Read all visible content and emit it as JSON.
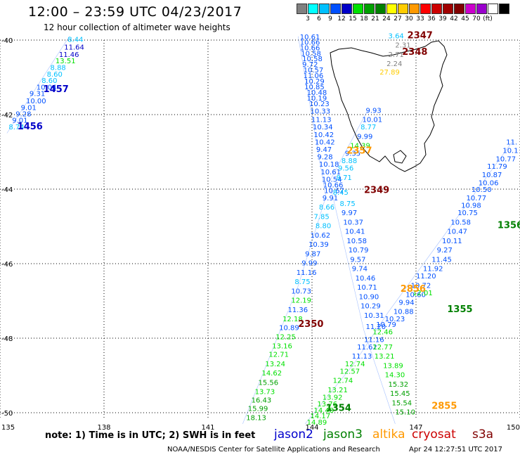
{
  "header": {
    "title": "12:00 – 23:59 UTC 04/23/2017",
    "subtitle": "12 hour collection of altimeter wave heights"
  },
  "color_scale": {
    "colors": [
      "#808080",
      "#00ffff",
      "#00c0ff",
      "#0050ff",
      "#0000c8",
      "#00e000",
      "#00a000",
      "#008000",
      "#ffff00",
      "#ffcc00",
      "#ff9900",
      "#ff0000",
      "#cc0000",
      "#a00000",
      "#800000",
      "#cc00cc",
      "#9900cc",
      "#ffffff",
      "#000000"
    ],
    "ticks": [
      "3",
      "6",
      "9",
      "12",
      "15",
      "18",
      "21",
      "24",
      "27",
      "30",
      "33",
      "36",
      "39",
      "42",
      "45",
      "70",
      "(ft)"
    ]
  },
  "axes": {
    "lon_ticks": [
      "135",
      "138",
      "141",
      "144",
      "147",
      "150"
    ],
    "lat_ticks": [
      "-40",
      "-42",
      "-44",
      "-46",
      "-48",
      "-50"
    ]
  },
  "coastline_color": "#000000",
  "pass_labels": [
    {
      "text": "1457",
      "lon": 136.25,
      "lat": -41.4,
      "color": "#0000c8"
    },
    {
      "text": "1456",
      "lon": 135.5,
      "lat": -42.4,
      "color": "#0000c8"
    },
    {
      "text": "2347",
      "lon": 146.75,
      "lat": -39.95,
      "color": "#800000"
    },
    {
      "text": "2348",
      "lon": 146.6,
      "lat": -40.4,
      "color": "#800000"
    },
    {
      "text": "2349",
      "lon": 145.5,
      "lat": -44.1,
      "color": "#800000"
    },
    {
      "text": "2350",
      "lon": 143.6,
      "lat": -47.7,
      "color": "#800000"
    },
    {
      "text": "1355",
      "lon": 147.9,
      "lat": -47.3,
      "color": "#008000"
    },
    {
      "text": "1356",
      "lon": 149.35,
      "lat": -45.05,
      "color": "#008000"
    },
    {
      "text": "1354",
      "lon": 144.4,
      "lat": -49.95,
      "color": "#008000"
    },
    {
      "text": "2357",
      "lon": 145.0,
      "lat": -43.05,
      "color": "#ff9900"
    },
    {
      "text": "2856",
      "lon": 146.55,
      "lat": -46.75,
      "color": "#ff9900"
    },
    {
      "text": "2855",
      "lon": 147.45,
      "lat": -49.9,
      "color": "#ff9900"
    }
  ],
  "wave_heights": [
    {
      "v": "8.44",
      "lon": 136.95,
      "lat": -40.05,
      "c": "#00c0ff"
    },
    {
      "v": "11.64",
      "lon": 136.85,
      "lat": -40.25,
      "c": "#0000c8"
    },
    {
      "v": "11.46",
      "lon": 136.7,
      "lat": -40.45,
      "c": "#0000c8"
    },
    {
      "v": "13.51",
      "lon": 136.6,
      "lat": -40.62,
      "c": "#00e000"
    },
    {
      "v": "8.88",
      "lon": 136.45,
      "lat": -40.8,
      "c": "#00c0ff"
    },
    {
      "v": "8.60",
      "lon": 136.35,
      "lat": -40.98,
      "c": "#00c0ff"
    },
    {
      "v": "8.60",
      "lon": 136.2,
      "lat": -41.15,
      "c": "#00c0ff"
    },
    {
      "v": "10.04",
      "lon": 136.05,
      "lat": -41.33,
      "c": "#0050ff"
    },
    {
      "v": "9.31",
      "lon": 135.85,
      "lat": -41.5,
      "c": "#0050ff"
    },
    {
      "v": "10.00",
      "lon": 135.75,
      "lat": -41.7,
      "c": "#0050ff"
    },
    {
      "v": "9.01",
      "lon": 135.6,
      "lat": -41.88,
      "c": "#0050ff"
    },
    {
      "v": "9.28",
      "lon": 135.45,
      "lat": -42.05,
      "c": "#0050ff"
    },
    {
      "v": "9.01",
      "lon": 135.35,
      "lat": -42.22,
      "c": "#0050ff"
    },
    {
      "v": "8.74",
      "lon": 135.25,
      "lat": -42.4,
      "c": "#00c0ff"
    },
    {
      "v": "10.61",
      "lon": 143.65,
      "lat": -39.98,
      "c": "#0050ff"
    },
    {
      "v": "10.66",
      "lon": 143.65,
      "lat": -40.12,
      "c": "#0050ff"
    },
    {
      "v": "10.66",
      "lon": 143.65,
      "lat": -40.27,
      "c": "#0050ff"
    },
    {
      "v": "10.58",
      "lon": 143.68,
      "lat": -40.42,
      "c": "#0050ff"
    },
    {
      "v": "10.58",
      "lon": 143.72,
      "lat": -40.57,
      "c": "#0050ff"
    },
    {
      "v": "9.72",
      "lon": 143.72,
      "lat": -40.72,
      "c": "#0050ff"
    },
    {
      "v": "10.57",
      "lon": 143.75,
      "lat": -40.87,
      "c": "#0050ff"
    },
    {
      "v": "11.06",
      "lon": 143.75,
      "lat": -41.02,
      "c": "#0050ff"
    },
    {
      "v": "10.29",
      "lon": 143.78,
      "lat": -41.17,
      "c": "#0050ff"
    },
    {
      "v": "10.85",
      "lon": 143.78,
      "lat": -41.32,
      "c": "#0050ff"
    },
    {
      "v": "10.48",
      "lon": 143.85,
      "lat": -41.47,
      "c": "#0050ff"
    },
    {
      "v": "10.19",
      "lon": 143.85,
      "lat": -41.62,
      "c": "#0050ff"
    },
    {
      "v": "10.23",
      "lon": 143.92,
      "lat": -41.77,
      "c": "#0050ff"
    },
    {
      "v": "10.33",
      "lon": 143.95,
      "lat": -41.97,
      "c": "#0050ff"
    },
    {
      "v": "11.13",
      "lon": 143.98,
      "lat": -42.2,
      "c": "#0050ff"
    },
    {
      "v": "10.34",
      "lon": 144.02,
      "lat": -42.4,
      "c": "#0050ff"
    },
    {
      "v": "10.42",
      "lon": 144.05,
      "lat": -42.6,
      "c": "#0050ff"
    },
    {
      "v": "10.42",
      "lon": 144.08,
      "lat": -42.8,
      "c": "#0050ff"
    },
    {
      "v": "9.47",
      "lon": 144.12,
      "lat": -43.0,
      "c": "#0050ff"
    },
    {
      "v": "9.28",
      "lon": 144.15,
      "lat": -43.2,
      "c": "#0050ff"
    },
    {
      "v": "10.18",
      "lon": 144.2,
      "lat": -43.4,
      "c": "#0050ff"
    },
    {
      "v": "10.61",
      "lon": 144.25,
      "lat": -43.6,
      "c": "#0050ff"
    },
    {
      "v": "10.54",
      "lon": 144.28,
      "lat": -43.8,
      "c": "#0050ff"
    },
    {
      "v": "10.66",
      "lon": 144.32,
      "lat": -43.95,
      "c": "#0050ff"
    },
    {
      "v": "10.67",
      "lon": 144.35,
      "lat": -44.1,
      "c": "#0050ff"
    },
    {
      "v": "9.91",
      "lon": 144.3,
      "lat": -44.3,
      "c": "#0050ff"
    },
    {
      "v": "8.66",
      "lon": 144.2,
      "lat": -44.55,
      "c": "#00c0ff"
    },
    {
      "v": "7.85",
      "lon": 144.05,
      "lat": -44.8,
      "c": "#00c0ff"
    },
    {
      "v": "8.80",
      "lon": 144.1,
      "lat": -45.05,
      "c": "#00c0ff"
    },
    {
      "v": "10.62",
      "lon": 143.95,
      "lat": -45.3,
      "c": "#0050ff"
    },
    {
      "v": "10.39",
      "lon": 143.9,
      "lat": -45.55,
      "c": "#0050ff"
    },
    {
      "v": "9.87",
      "lon": 143.8,
      "lat": -45.8,
      "c": "#0050ff"
    },
    {
      "v": "9.99",
      "lon": 143.7,
      "lat": -46.05,
      "c": "#0050ff"
    },
    {
      "v": "11.16",
      "lon": 143.55,
      "lat": -46.3,
      "c": "#0050ff"
    },
    {
      "v": "8.75",
      "lon": 143.5,
      "lat": -46.55,
      "c": "#00c0ff"
    },
    {
      "v": "10.73",
      "lon": 143.4,
      "lat": -46.8,
      "c": "#0050ff"
    },
    {
      "v": "12.19",
      "lon": 143.4,
      "lat": -47.05,
      "c": "#00e000"
    },
    {
      "v": "11.36",
      "lon": 143.3,
      "lat": -47.3,
      "c": "#0050ff"
    },
    {
      "v": "12.18",
      "lon": 143.15,
      "lat": -47.55,
      "c": "#00e000"
    },
    {
      "v": "10.89",
      "lon": 143.05,
      "lat": -47.78,
      "c": "#0050ff"
    },
    {
      "v": "12.25",
      "lon": 142.95,
      "lat": -48.03,
      "c": "#00e000"
    },
    {
      "v": "13.16",
      "lon": 142.85,
      "lat": -48.27,
      "c": "#00e000"
    },
    {
      "v": "12.71",
      "lon": 142.75,
      "lat": -48.5,
      "c": "#00e000"
    },
    {
      "v": "13.24",
      "lon": 142.65,
      "lat": -48.75,
      "c": "#00e000"
    },
    {
      "v": "14.62",
      "lon": 142.55,
      "lat": -49.0,
      "c": "#00e000"
    },
    {
      "v": "15.56",
      "lon": 142.45,
      "lat": -49.25,
      "c": "#00a000"
    },
    {
      "v": "13.73",
      "lon": 142.35,
      "lat": -49.5,
      "c": "#00e000"
    },
    {
      "v": "16.43",
      "lon": 142.25,
      "lat": -49.73,
      "c": "#00a000"
    },
    {
      "v": "15.99",
      "lon": 142.15,
      "lat": -49.95,
      "c": "#00a000"
    },
    {
      "v": "18.13",
      "lon": 142.1,
      "lat": -50.2,
      "c": "#00a000"
    },
    {
      "v": "9.93",
      "lon": 145.55,
      "lat": -41.95,
      "c": "#0050ff"
    },
    {
      "v": "10.01",
      "lon": 145.45,
      "lat": -42.2,
      "c": "#0050ff"
    },
    {
      "v": "8.77",
      "lon": 145.4,
      "lat": -42.4,
      "c": "#00c0ff"
    },
    {
      "v": "9.99",
      "lon": 145.3,
      "lat": -42.65,
      "c": "#0050ff"
    },
    {
      "v": "14.39",
      "lon": 145.1,
      "lat": -42.9,
      "c": "#00e000"
    },
    {
      "v": "9.35",
      "lon": 144.95,
      "lat": -43.1,
      "c": "#0050ff"
    },
    {
      "v": "8.88",
      "lon": 144.85,
      "lat": -43.3,
      "c": "#00c0ff"
    },
    {
      "v": "9.56",
      "lon": 144.75,
      "lat": -43.5,
      "c": "#00c0ff"
    },
    {
      "v": "8.71",
      "lon": 144.7,
      "lat": -43.75,
      "c": "#00c0ff"
    },
    {
      "v": "8.45",
      "lon": 144.6,
      "lat": -44.15,
      "c": "#00c0ff"
    },
    {
      "v": "8.75",
      "lon": 144.8,
      "lat": -44.45,
      "c": "#00c0ff"
    },
    {
      "v": "9.97",
      "lon": 144.85,
      "lat": -44.7,
      "c": "#0050ff"
    },
    {
      "v": "10.37",
      "lon": 144.9,
      "lat": -44.95,
      "c": "#0050ff"
    },
    {
      "v": "10.41",
      "lon": 144.95,
      "lat": -45.2,
      "c": "#0050ff"
    },
    {
      "v": "10.58",
      "lon": 145.0,
      "lat": -45.45,
      "c": "#0050ff"
    },
    {
      "v": "10.79",
      "lon": 145.05,
      "lat": -45.7,
      "c": "#0050ff"
    },
    {
      "v": "9.57",
      "lon": 145.1,
      "lat": -45.95,
      "c": "#0050ff"
    },
    {
      "v": "9.74",
      "lon": 145.15,
      "lat": -46.2,
      "c": "#0050ff"
    },
    {
      "v": "10.46",
      "lon": 145.25,
      "lat": -46.45,
      "c": "#0050ff"
    },
    {
      "v": "10.71",
      "lon": 145.3,
      "lat": -46.7,
      "c": "#0050ff"
    },
    {
      "v": "10.90",
      "lon": 145.35,
      "lat": -46.95,
      "c": "#0050ff"
    },
    {
      "v": "10.29",
      "lon": 145.4,
      "lat": -47.2,
      "c": "#0050ff"
    },
    {
      "v": "10.31",
      "lon": 145.5,
      "lat": -47.45,
      "c": "#0050ff"
    },
    {
      "v": "11.20",
      "lon": 145.55,
      "lat": -47.75,
      "c": "#0050ff"
    },
    {
      "v": "12.46",
      "lon": 145.75,
      "lat": -47.9,
      "c": "#00e000"
    },
    {
      "v": "11.16",
      "lon": 145.5,
      "lat": -48.1,
      "c": "#0050ff"
    },
    {
      "v": "11.62",
      "lon": 145.3,
      "lat": -48.3,
      "c": "#0050ff"
    },
    {
      "v": "11.13",
      "lon": 145.15,
      "lat": -48.55,
      "c": "#0050ff"
    },
    {
      "v": "12.77",
      "lon": 145.75,
      "lat": -48.3,
      "c": "#00e000"
    },
    {
      "v": "13.21",
      "lon": 145.8,
      "lat": -48.55,
      "c": "#00e000"
    },
    {
      "v": "12.74",
      "lon": 144.95,
      "lat": -48.75,
      "c": "#00e000"
    },
    {
      "v": "12.57",
      "lon": 144.8,
      "lat": -48.95,
      "c": "#00e000"
    },
    {
      "v": "12.74",
      "lon": 144.6,
      "lat": -49.2,
      "c": "#00e000"
    },
    {
      "v": "13.21",
      "lon": 144.45,
      "lat": -49.45,
      "c": "#00e000"
    },
    {
      "v": "13.92",
      "lon": 144.3,
      "lat": -49.65,
      "c": "#00e000"
    },
    {
      "v": "13.76",
      "lon": 144.15,
      "lat": -49.83,
      "c": "#00e000"
    },
    {
      "v": "14.48",
      "lon": 144.05,
      "lat": -50.0,
      "c": "#00e000"
    },
    {
      "v": "14.17",
      "lon": 143.95,
      "lat": -50.15,
      "c": "#00e000"
    },
    {
      "v": "14.89",
      "lon": 143.85,
      "lat": -50.32,
      "c": "#00e000"
    },
    {
      "v": "13.89",
      "lon": 146.05,
      "lat": -48.8,
      "c": "#00e000"
    },
    {
      "v": "14.30",
      "lon": 146.1,
      "lat": -49.05,
      "c": "#00e000"
    },
    {
      "v": "15.32",
      "lon": 146.2,
      "lat": -49.3,
      "c": "#00a000"
    },
    {
      "v": "15.45",
      "lon": 146.25,
      "lat": -49.55,
      "c": "#00a000"
    },
    {
      "v": "15.54",
      "lon": 146.3,
      "lat": -49.8,
      "c": "#00a000"
    },
    {
      "v": "15.10",
      "lon": 146.4,
      "lat": -50.05,
      "c": "#00a000"
    },
    {
      "v": "10.88",
      "lon": 146.35,
      "lat": -47.35,
      "c": "#0050ff"
    },
    {
      "v": "10.23",
      "lon": 146.1,
      "lat": -47.55,
      "c": "#0050ff"
    },
    {
      "v": "10.79",
      "lon": 145.85,
      "lat": -47.7,
      "c": "#0050ff"
    },
    {
      "v": "9.94",
      "lon": 146.5,
      "lat": -47.1,
      "c": "#0050ff"
    },
    {
      "v": "10.60",
      "lon": 146.7,
      "lat": -46.9,
      "c": "#0050ff"
    },
    {
      "v": "10.72",
      "lon": 146.85,
      "lat": -46.65,
      "c": "#0050ff"
    },
    {
      "v": "11.20",
      "lon": 147.0,
      "lat": -46.4,
      "c": "#0050ff"
    },
    {
      "v": "11.92",
      "lon": 147.2,
      "lat": -46.2,
      "c": "#0050ff"
    },
    {
      "v": "11.45",
      "lon": 147.45,
      "lat": -45.95,
      "c": "#0050ff"
    },
    {
      "v": "9.27",
      "lon": 147.6,
      "lat": -45.7,
      "c": "#0050ff"
    },
    {
      "v": "10.11",
      "lon": 147.75,
      "lat": -45.45,
      "c": "#0050ff"
    },
    {
      "v": "10.47",
      "lon": 147.9,
      "lat": -45.2,
      "c": "#0050ff"
    },
    {
      "v": "10.58",
      "lon": 148.0,
      "lat": -44.95,
      "c": "#0050ff"
    },
    {
      "v": "10.75",
      "lon": 148.2,
      "lat": -44.7,
      "c": "#0050ff"
    },
    {
      "v": "10.98",
      "lon": 148.3,
      "lat": -44.5,
      "c": "#0050ff"
    },
    {
      "v": "10.77",
      "lon": 148.45,
      "lat": -44.3,
      "c": "#0050ff"
    },
    {
      "v": "10.50",
      "lon": 148.6,
      "lat": -44.08,
      "c": "#0050ff"
    },
    {
      "v": "10.06",
      "lon": 148.8,
      "lat": -43.9,
      "c": "#0050ff"
    },
    {
      "v": "10.87",
      "lon": 148.9,
      "lat": -43.68,
      "c": "#0050ff"
    },
    {
      "v": "11.79",
      "lon": 149.05,
      "lat": -43.45,
      "c": "#0050ff"
    },
    {
      "v": "10.77",
      "lon": 149.3,
      "lat": -43.25,
      "c": "#0050ff"
    },
    {
      "v": "10.1",
      "lon": 149.5,
      "lat": -43.03,
      "c": "#0050ff"
    },
    {
      "v": "11.",
      "lon": 149.6,
      "lat": -42.8,
      "c": "#0050ff"
    },
    {
      "v": "12.01",
      "lon": 146.9,
      "lat": -46.85,
      "c": "#00e000"
    },
    {
      "v": "3.64",
      "lon": 146.2,
      "lat": -39.95,
      "c": "#00c0ff"
    },
    {
      "v": "2.31",
      "lon": 146.4,
      "lat": -40.2,
      "c": "#808080"
    },
    {
      "v": "2.71",
      "lon": 146.2,
      "lat": -40.45,
      "c": "#808080"
    },
    {
      "v": "2.24",
      "lon": 146.15,
      "lat": -40.7,
      "c": "#808080"
    },
    {
      "v": "27.89",
      "lon": 145.95,
      "lat": -40.92,
      "c": "#ffcc00"
    }
  ],
  "tracks": [
    {
      "c": "#0050ff",
      "pts": [
        [
          137.0,
          -39.9
        ],
        [
          135.2,
          -42.5
        ]
      ]
    },
    {
      "c": "#0050ff",
      "pts": [
        [
          143.6,
          -39.9
        ],
        [
          144.4,
          -44.2
        ],
        [
          143.6,
          -46.6
        ],
        [
          142.0,
          -50.3
        ]
      ]
    },
    {
      "c": "#0050ff",
      "pts": [
        [
          145.6,
          -41.9
        ],
        [
          144.5,
          -43.8
        ],
        [
          145.5,
          -47.8
        ],
        [
          146.4,
          -50.3
        ]
      ]
    },
    {
      "c": "#0050ff",
      "pts": [
        [
          149.8,
          -42.7
        ],
        [
          146.2,
          -47.3
        ],
        [
          145.2,
          -48.7
        ],
        [
          143.8,
          -50.3
        ]
      ]
    }
  ],
  "footer": {
    "note": "note: 1) Time is in UTC; 2) SWH is in feet",
    "missions": [
      {
        "name": "jason2",
        "color": "#0000cc"
      },
      {
        "name": "jason3",
        "color": "#008000"
      },
      {
        "name": "altika",
        "color": "#ff9900"
      },
      {
        "name": "cryosat",
        "color": "#cc0000"
      },
      {
        "name": "s3a",
        "color": "#800000"
      }
    ],
    "credit": "NOAA/NESDIS Center for Satellite Applications and Research",
    "timestamp": "Apr 24 12:27:51 UTC 2017"
  }
}
